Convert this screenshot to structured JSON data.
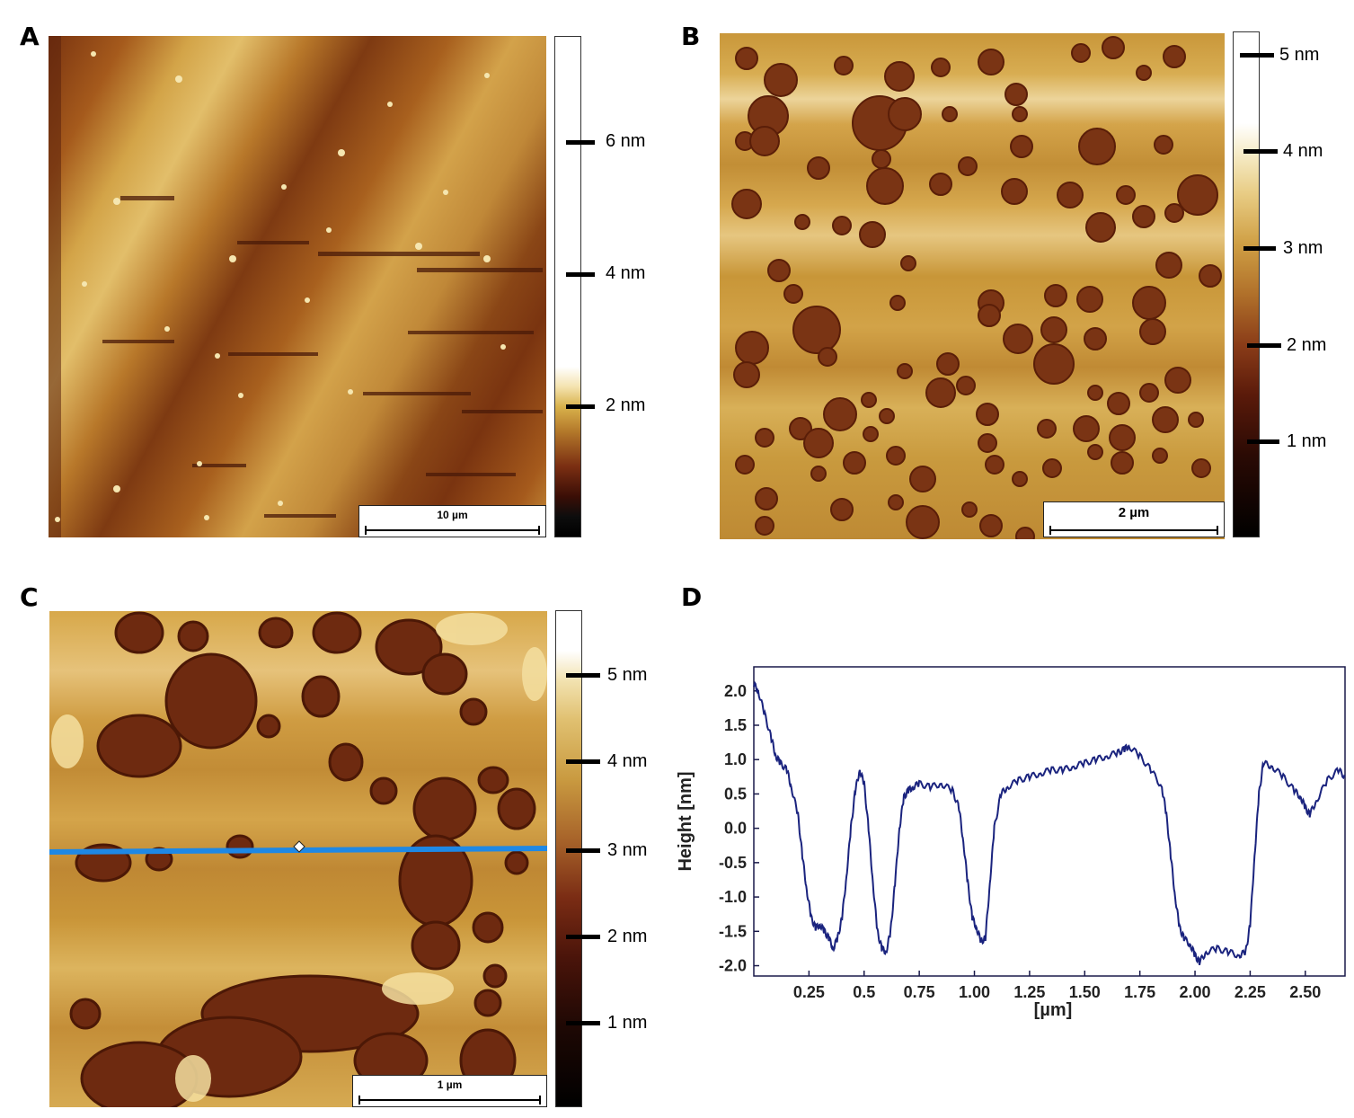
{
  "panels": {
    "A": {
      "letter": "A",
      "scale_bar": "10 µm",
      "colorbar": {
        "ticks": [
          "6 nm",
          "4 nm",
          "2 nm"
        ]
      }
    },
    "B": {
      "letter": "B",
      "scale_bar": "2 µm",
      "colorbar": {
        "ticks": [
          "5 nm",
          "4 nm",
          "3 nm",
          "2 nm",
          "1 nm"
        ]
      }
    },
    "C": {
      "letter": "C",
      "scale_bar": "1 µm",
      "colorbar": {
        "ticks": [
          "5 nm",
          "4 nm",
          "3 nm",
          "2 nm",
          "1 nm"
        ]
      }
    },
    "D": {
      "letter": "D"
    }
  },
  "colors": {
    "afm_light": "#e8c878",
    "afm_mid": "#b77a2c",
    "afm_dark": "#6a2a10",
    "profile_line": "#1a237e",
    "cut_line": "#1e88e5"
  },
  "chart_data": {
    "type": "line",
    "xlabel": "[µm]",
    "ylabel": "Height  [nm]",
    "xlim": [
      0.0,
      2.68
    ],
    "ylim": [
      -2.15,
      2.35
    ],
    "xticks": [
      "0.25",
      "0.5",
      "0.75",
      "1.00",
      "1.25",
      "1.50",
      "1.75",
      "2.00",
      "2.25",
      "2.50"
    ],
    "yticks": [
      "2.0",
      "1.5",
      "1.0",
      "0.5",
      "0.0",
      "-0.5",
      "-1.0",
      "-1.5",
      "-2.0"
    ],
    "series": [
      {
        "x": [
          0.0,
          0.02,
          0.05,
          0.08,
          0.1,
          0.12,
          0.15,
          0.17,
          0.2,
          0.22,
          0.24,
          0.26,
          0.28,
          0.3,
          0.32,
          0.34,
          0.36,
          0.38,
          0.4,
          0.42,
          0.44,
          0.46,
          0.48,
          0.5,
          0.52,
          0.54,
          0.56,
          0.58,
          0.6,
          0.62,
          0.64,
          0.66,
          0.68,
          0.7,
          0.72,
          0.75,
          0.8,
          0.85,
          0.9,
          0.93,
          0.95,
          0.97,
          0.99,
          1.01,
          1.03,
          1.05,
          1.07,
          1.09,
          1.12,
          1.15,
          1.2,
          1.25,
          1.3,
          1.35,
          1.4,
          1.45,
          1.5,
          1.55,
          1.6,
          1.65,
          1.68,
          1.7,
          1.75,
          1.8,
          1.85,
          1.87,
          1.89,
          1.91,
          1.93,
          1.95,
          1.98,
          2.0,
          2.02,
          2.05,
          2.1,
          2.15,
          2.2,
          2.23,
          2.25,
          2.27,
          2.29,
          2.31,
          2.35,
          2.4,
          2.45,
          2.48,
          2.5,
          2.52,
          2.55,
          2.6,
          2.65,
          2.68
        ],
        "y": [
          2.1,
          2.0,
          1.65,
          1.3,
          1.05,
          0.95,
          0.85,
          0.6,
          0.2,
          -0.4,
          -0.9,
          -1.3,
          -1.45,
          -1.4,
          -1.5,
          -1.6,
          -1.75,
          -1.6,
          -1.3,
          -0.7,
          0.0,
          0.55,
          0.85,
          0.65,
          0.0,
          -0.8,
          -1.5,
          -1.75,
          -1.8,
          -1.5,
          -0.8,
          0.0,
          0.45,
          0.55,
          0.6,
          0.65,
          0.6,
          0.65,
          0.55,
          0.3,
          -0.2,
          -0.8,
          -1.3,
          -1.45,
          -1.65,
          -1.6,
          -0.8,
          0.0,
          0.5,
          0.6,
          0.7,
          0.75,
          0.8,
          0.85,
          0.85,
          0.9,
          0.95,
          1.0,
          1.05,
          1.1,
          1.15,
          1.2,
          1.05,
          0.85,
          0.6,
          0.2,
          -0.4,
          -1.0,
          -1.45,
          -1.6,
          -1.7,
          -1.85,
          -1.95,
          -1.8,
          -1.75,
          -1.8,
          -1.85,
          -1.8,
          -1.4,
          -0.4,
          0.5,
          0.95,
          0.9,
          0.75,
          0.55,
          0.45,
          0.3,
          0.2,
          0.4,
          0.7,
          0.85,
          0.75
        ]
      }
    ]
  }
}
